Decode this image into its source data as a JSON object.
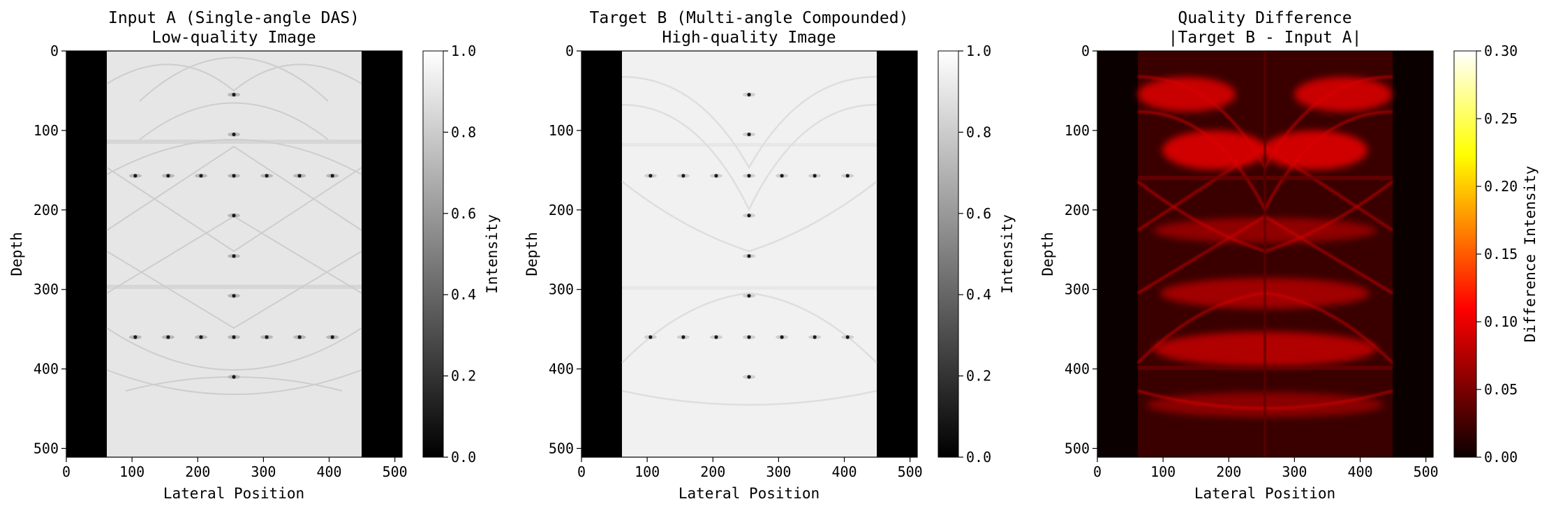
{
  "chart_data": [
    {
      "type": "heatmap",
      "title_line1": "Input A (Single-angle DAS)",
      "title_line2": "Low-quality Image",
      "xlabel": "Lateral Position",
      "ylabel": "Depth",
      "colorbar_label": "Intensity",
      "colormap": "gray",
      "xlim": [
        0,
        511
      ],
      "ylim": [
        511,
        0
      ],
      "x_ticks": [
        0,
        100,
        200,
        300,
        400,
        500
      ],
      "y_ticks": [
        0,
        100,
        200,
        300,
        400,
        500
      ],
      "clim": [
        0.0,
        1.0
      ],
      "colorbar_ticks": [
        "0.0",
        "0.2",
        "0.4",
        "0.6",
        "0.8",
        "1.0"
      ],
      "image_columns": [
        62,
        449
      ],
      "background_intensity": 0.91,
      "point_targets": [
        {
          "x": 255,
          "y": 55
        },
        {
          "x": 255,
          "y": 105
        },
        {
          "x": 105,
          "y": 157
        },
        {
          "x": 155,
          "y": 157
        },
        {
          "x": 205,
          "y": 157
        },
        {
          "x": 255,
          "y": 157
        },
        {
          "x": 305,
          "y": 157
        },
        {
          "x": 355,
          "y": 157
        },
        {
          "x": 405,
          "y": 157
        },
        {
          "x": 255,
          "y": 207
        },
        {
          "x": 255,
          "y": 258
        },
        {
          "x": 255,
          "y": 308
        },
        {
          "x": 105,
          "y": 360
        },
        {
          "x": 155,
          "y": 360
        },
        {
          "x": 205,
          "y": 360
        },
        {
          "x": 255,
          "y": 360
        },
        {
          "x": 305,
          "y": 360
        },
        {
          "x": 355,
          "y": 360
        },
        {
          "x": 405,
          "y": 360
        },
        {
          "x": 255,
          "y": 410
        }
      ]
    },
    {
      "type": "heatmap",
      "title_line1": "Target B (Multi-angle Compounded)",
      "title_line2": "High-quality Image",
      "xlabel": "Lateral Position",
      "ylabel": "Depth",
      "colorbar_label": "Intensity",
      "colormap": "gray",
      "xlim": [
        0,
        511
      ],
      "ylim": [
        511,
        0
      ],
      "x_ticks": [
        0,
        100,
        200,
        300,
        400,
        500
      ],
      "y_ticks": [
        0,
        100,
        200,
        300,
        400,
        500
      ],
      "clim": [
        0.0,
        1.0
      ],
      "colorbar_ticks": [
        "0.0",
        "0.2",
        "0.4",
        "0.6",
        "0.8",
        "1.0"
      ],
      "image_columns": [
        62,
        449
      ],
      "background_intensity": 0.95,
      "point_targets": [
        {
          "x": 255,
          "y": 55
        },
        {
          "x": 255,
          "y": 105
        },
        {
          "x": 105,
          "y": 157
        },
        {
          "x": 155,
          "y": 157
        },
        {
          "x": 205,
          "y": 157
        },
        {
          "x": 255,
          "y": 157
        },
        {
          "x": 305,
          "y": 157
        },
        {
          "x": 355,
          "y": 157
        },
        {
          "x": 405,
          "y": 157
        },
        {
          "x": 255,
          "y": 207
        },
        {
          "x": 255,
          "y": 258
        },
        {
          "x": 255,
          "y": 308
        },
        {
          "x": 105,
          "y": 360
        },
        {
          "x": 155,
          "y": 360
        },
        {
          "x": 205,
          "y": 360
        },
        {
          "x": 255,
          "y": 360
        },
        {
          "x": 305,
          "y": 360
        },
        {
          "x": 355,
          "y": 360
        },
        {
          "x": 405,
          "y": 360
        },
        {
          "x": 255,
          "y": 410
        }
      ]
    },
    {
      "type": "heatmap",
      "title_line1": "Quality Difference",
      "title_line2": "|Target B - Input A|",
      "xlabel": "Lateral Position",
      "ylabel": "Depth",
      "colorbar_label": "Difference Intensity",
      "colormap": "hot",
      "xlim": [
        0,
        511
      ],
      "ylim": [
        511,
        0
      ],
      "x_ticks": [
        0,
        100,
        200,
        300,
        400,
        500
      ],
      "y_ticks": [
        0,
        100,
        200,
        300,
        400,
        500
      ],
      "clim": [
        0.0,
        0.3
      ],
      "colorbar_ticks": [
        "0.00",
        "0.05",
        "0.10",
        "0.15",
        "0.20",
        "0.25",
        "0.30"
      ],
      "image_columns": [
        62,
        449
      ],
      "bright_bands_depth": [
        30,
        90,
        130,
        250,
        365,
        445
      ],
      "peak_difference": 0.12
    }
  ]
}
